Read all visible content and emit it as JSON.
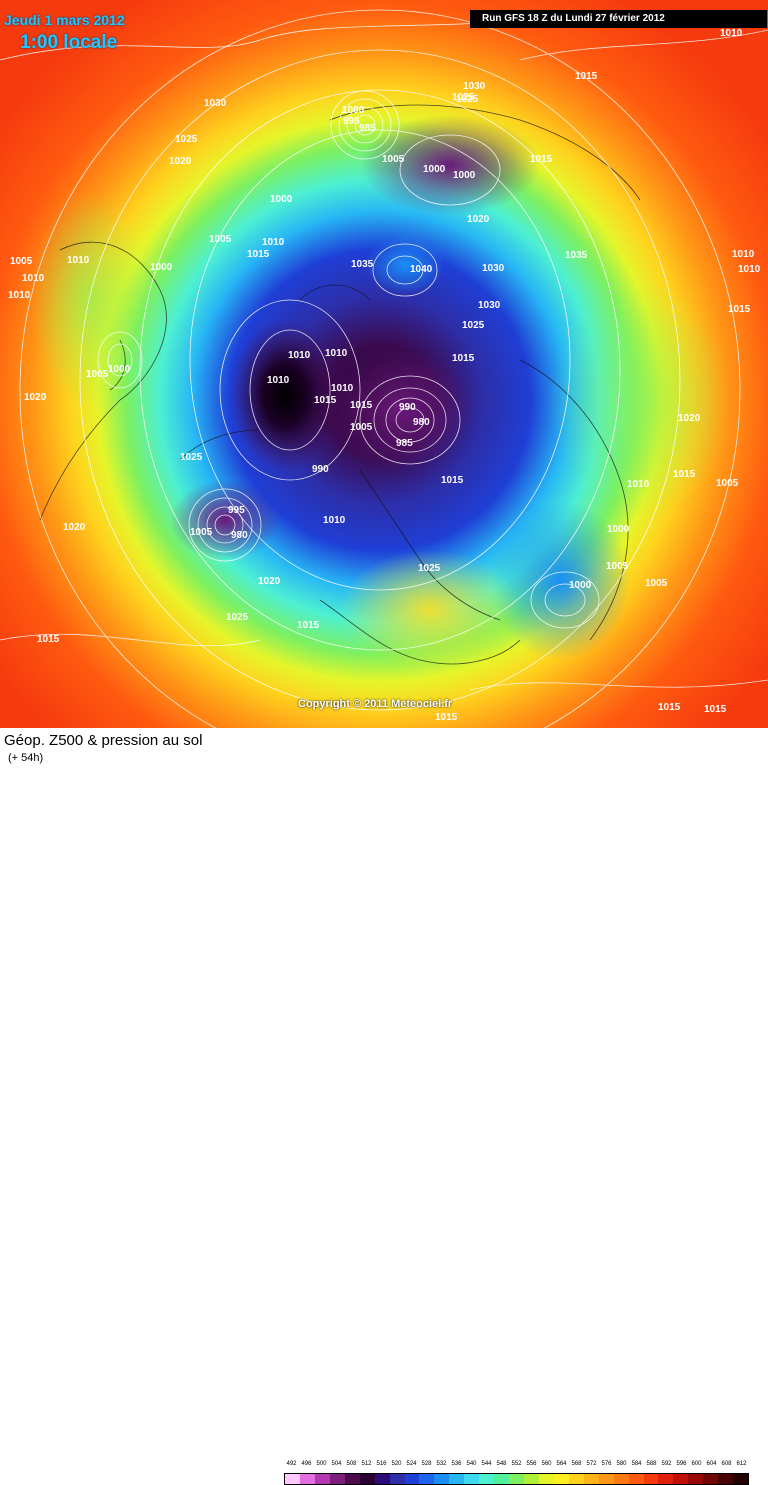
{
  "header": {
    "date": "Jeudi 1 mars 2012",
    "time": "1:00 locale",
    "run_info": "Run GFS 18 Z du Lundi 27 février 2012"
  },
  "map": {
    "copyright": "Copyright © 2011 Meteociel.fr",
    "isobar_labels": [
      "1030",
      "1025",
      "1020",
      "1010",
      "1005",
      "1000",
      "1015",
      "1005",
      "1010",
      "1000",
      "1025",
      "1020",
      "1015",
      "1010",
      "1005",
      "1000",
      "1000",
      "995",
      "985",
      "1005",
      "1000",
      "1000",
      "1020",
      "1035",
      "1040",
      "1030",
      "1025",
      "1015",
      "1030",
      "1035",
      "1010",
      "1010",
      "1010",
      "1015",
      "1010",
      "1015",
      "990",
      "980",
      "985",
      "1005",
      "990",
      "1010",
      "995",
      "1005",
      "980",
      "1025",
      "1020",
      "1025",
      "1015",
      "1015",
      "1025",
      "1015",
      "1015",
      "1020",
      "1010",
      "1015",
      "1005",
      "1000",
      "1005",
      "1005",
      "1000",
      "1010",
      "1010",
      "1015",
      "1020",
      "1015",
      "1030",
      "1025",
      "1015",
      "1010",
      "1010",
      "1015"
    ]
  },
  "footer": {
    "title": "Géop. Z500 & pression au sol",
    "subtitle": "(+ 54h)"
  },
  "legend": {
    "values": [
      "492",
      "496",
      "500",
      "504",
      "508",
      "512",
      "516",
      "520",
      "524",
      "528",
      "532",
      "536",
      "540",
      "544",
      "548",
      "552",
      "556",
      "560",
      "564",
      "568",
      "572",
      "576",
      "580",
      "584",
      "588",
      "592",
      "596",
      "600",
      "604",
      "608",
      "612"
    ],
    "colors": [
      "#ffc8ff",
      "#e26ee2",
      "#b239b2",
      "#7d1e7d",
      "#4d0b4d",
      "#2a0033",
      "#2b0c78",
      "#2d2ea8",
      "#1f3fd6",
      "#1e64ee",
      "#1a8ef5",
      "#27b6f5",
      "#3fd9f0",
      "#4ef0d2",
      "#52f09a",
      "#7cf060",
      "#b0f038",
      "#e6f52a",
      "#fff022",
      "#ffd21e",
      "#ffb41a",
      "#ff9616",
      "#ff7812",
      "#ff5a10",
      "#f53a0e",
      "#e0200c",
      "#c0100a",
      "#980808",
      "#700606",
      "#480404",
      "#200202"
    ]
  }
}
